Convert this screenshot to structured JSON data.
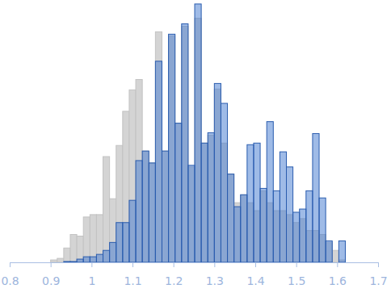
{
  "chart_data": {
    "type": "histogram",
    "bins": [
      0.9,
      0.916,
      0.932,
      0.948,
      0.964,
      0.98,
      0.996,
      1.012,
      1.028,
      1.044,
      1.06,
      1.076,
      1.092,
      1.108,
      1.124,
      1.14,
      1.156,
      1.172,
      1.188,
      1.204,
      1.22,
      1.236,
      1.252,
      1.268,
      1.284,
      1.3,
      1.316,
      1.332,
      1.348,
      1.364,
      1.38,
      1.396,
      1.412,
      1.428,
      1.444,
      1.46,
      1.476,
      1.492,
      1.508,
      1.524,
      1.54,
      1.556,
      1.572,
      1.588,
      1.604,
      1.62
    ],
    "series": [
      {
        "color": "#d4d4d4",
        "values": [
          3,
          5,
          18,
          35,
          33,
          57,
          60,
          60,
          133,
          80,
          147,
          190,
          217,
          230,
          140,
          125,
          290,
          140,
          285,
          175,
          297,
          120,
          307,
          150,
          160,
          218,
          150,
          111,
          75,
          85,
          75,
          65,
          90,
          75,
          65,
          65,
          60,
          50,
          55,
          40,
          40,
          35,
          25,
          15,
          3
        ]
      },
      {
        "color": "#3f78d0",
        "values": [
          0,
          0,
          1,
          1,
          4,
          7,
          7,
          10,
          15,
          25,
          50,
          50,
          78,
          128,
          140,
          125,
          253,
          140,
          287,
          175,
          300,
          122,
          325,
          150,
          163,
          225,
          200,
          111,
          70,
          85,
          148,
          150,
          93,
          177,
          90,
          139,
          120,
          63,
          67,
          90,
          162,
          81,
          27,
          0,
          27
        ]
      }
    ],
    "xlim": [
      0.8,
      1.7
    ],
    "xticks": [
      0.8,
      0.9,
      1,
      1.1,
      1.2,
      1.3,
      1.4,
      1.5,
      1.6,
      1.7
    ],
    "ylim": [
      0,
      330
    ],
    "tick_labels": "x",
    "grid": false
  }
}
